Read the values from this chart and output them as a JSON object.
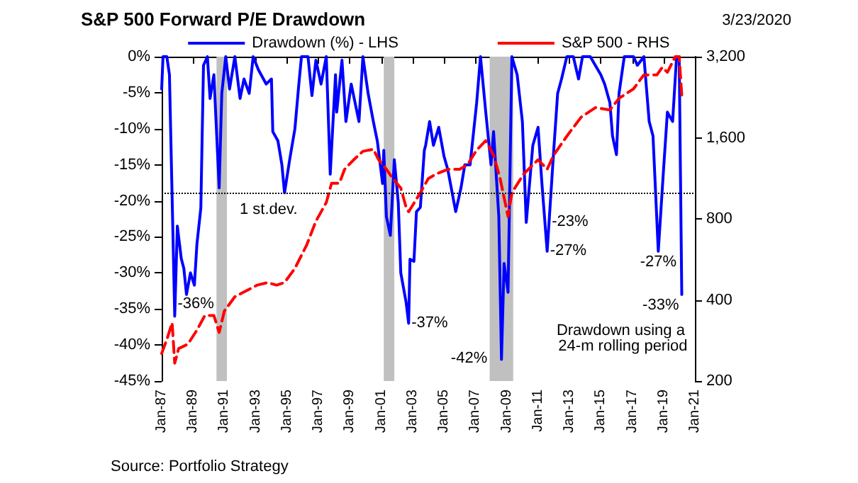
{
  "chart_data": {
    "type": "line",
    "title": "S&P 500 Forward P/E Drawdown",
    "subtitle": "3/23/2020",
    "xlim": [
      "1987-01",
      "2021-01"
    ],
    "xticks": [
      {
        "value": "1987-01",
        "label": "Jan-87"
      },
      {
        "value": "1989-01",
        "label": "Jan-89"
      },
      {
        "value": "1991-01",
        "label": "Jan-91"
      },
      {
        "value": "1993-01",
        "label": "Jan-93"
      },
      {
        "value": "1995-01",
        "label": "Jan-95"
      },
      {
        "value": "1997-01",
        "label": "Jan-97"
      },
      {
        "value": "1999-01",
        "label": "Jan-99"
      },
      {
        "value": "2001-01",
        "label": "Jan-01"
      },
      {
        "value": "2003-01",
        "label": "Jan-03"
      },
      {
        "value": "2005-01",
        "label": "Jan-05"
      },
      {
        "value": "2007-01",
        "label": "Jan-07"
      },
      {
        "value": "2009-01",
        "label": "Jan-09"
      },
      {
        "value": "2011-01",
        "label": "Jan-11"
      },
      {
        "value": "2013-01",
        "label": "Jan-13"
      },
      {
        "value": "2015-01",
        "label": "Jan-15"
      },
      {
        "value": "2017-01",
        "label": "Jan-17"
      },
      {
        "value": "2019-01",
        "label": "Jan-19"
      },
      {
        "value": "2021-01",
        "label": "Jan-21"
      }
    ],
    "ylim": [
      -45,
      0
    ],
    "yticks": [
      {
        "value": 0,
        "label": "0%"
      },
      {
        "value": -5,
        "label": "-5%"
      },
      {
        "value": -10,
        "label": "-10%"
      },
      {
        "value": -15,
        "label": "-15%"
      },
      {
        "value": -20,
        "label": "-20%"
      },
      {
        "value": -25,
        "label": "-25%"
      },
      {
        "value": -30,
        "label": "-30%"
      },
      {
        "value": -35,
        "label": "-35%"
      },
      {
        "value": -40,
        "label": "-40%"
      },
      {
        "value": -45,
        "label": "-45%"
      }
    ],
    "y2lim": [
      200,
      3200
    ],
    "y2ticks": [
      200,
      400,
      800,
      {
        "value": 1600,
        "label": "1,600"
      },
      {
        "value": 3200,
        "label": "3,200"
      }
    ],
    "log": "y2",
    "grid": false,
    "legend": "top",
    "marker": "none",
    "series": [
      {
        "name": "Drawdown (%) - LHS",
        "color": "#0000ff",
        "line_style": "solid",
        "x": [
          "1987-01",
          "1987-02",
          "1987-05",
          "1987-07",
          "1987-11",
          "1988-01",
          "1988-04",
          "1988-06",
          "1988-08",
          "1988-11",
          "1989-02",
          "1989-04",
          "1989-07",
          "1989-09",
          "1989-12",
          "1990-02",
          "1990-05",
          "1990-09",
          "1990-11",
          "1991-02",
          "1991-05",
          "1991-09",
          "1992-01",
          "1992-04",
          "1992-08",
          "1992-11",
          "1993-03",
          "1993-09",
          "1994-01",
          "1994-02",
          "1994-06",
          "1994-09",
          "1994-11",
          "1995-03",
          "1995-07",
          "1995-10",
          "1995-12",
          "1996-05",
          "1996-08",
          "1996-11",
          "1997-03",
          "1997-07",
          "1997-10",
          "1998-02",
          "1998-03",
          "1998-07",
          "1998-10",
          "1999-02",
          "1999-08",
          "1999-11",
          "2000-03",
          "2000-07",
          "2000-10",
          "2001-02",
          "2001-03",
          "2001-05",
          "2001-08",
          "2001-11",
          "2002-02",
          "2002-04",
          "2002-08",
          "2002-10",
          "2002-11",
          "2003-02",
          "2003-04",
          "2003-07",
          "2003-10",
          "2003-11",
          "2004-02",
          "2004-05",
          "2004-09",
          "2005-01",
          "2005-04",
          "2005-10",
          "2006-02",
          "2006-05",
          "2006-09",
          "2007-02",
          "2007-05",
          "2007-09",
          "2008-01",
          "2008-03",
          "2008-07",
          "2008-09",
          "2008-11",
          "2009-02",
          "2009-05",
          "2009-09",
          "2010-01",
          "2010-04",
          "2010-09",
          "2011-01",
          "2011-04",
          "2011-08",
          "2012-01",
          "2012-04",
          "2012-07",
          "2012-11",
          "2013-04",
          "2013-08",
          "2013-11",
          "2014-05",
          "2015-01",
          "2015-04",
          "2015-08",
          "2015-10",
          "2016-01",
          "2016-03",
          "2016-07",
          "2017-02",
          "2017-05",
          "2017-10",
          "2018-02",
          "2018-05",
          "2018-09",
          "2019-01",
          "2019-04",
          "2019-08",
          "2019-11",
          "2020-01",
          "2020-03"
        ],
        "values": [
          -4.5,
          0,
          0,
          -2.5,
          -36,
          -23.5,
          -28,
          -29.4,
          -33,
          -30,
          -31.7,
          -26,
          -21,
          -1.2,
          0,
          -5.8,
          -2.5,
          -18.2,
          -5.1,
          0,
          -4.5,
          0,
          -5.8,
          -3.1,
          -5.1,
          0,
          -1.8,
          -3.8,
          -3.1,
          -10.4,
          -11.7,
          -15,
          -18.9,
          -14.3,
          -10,
          -3.8,
          0,
          0,
          -5.4,
          -0.5,
          -3.8,
          0,
          -16.3,
          -2.5,
          -7.7,
          -0.5,
          -9,
          -3.8,
          -9,
          0,
          -5.1,
          -9,
          -11.7,
          -17.6,
          -13,
          -22.2,
          -24.8,
          -14.3,
          -20.2,
          -30,
          -34,
          -37,
          -28.1,
          -28.4,
          -21.5,
          -20.9,
          -13,
          -12.3,
          -9,
          -12.3,
          -9.8,
          -13.8,
          -15.7,
          -21.5,
          -18.2,
          -15,
          -15,
          -6.4,
          0,
          -7.7,
          -15,
          -10.4,
          -22.2,
          -42,
          -28.7,
          -32.7,
          0,
          -2.5,
          -9,
          -23,
          -12.3,
          -9.8,
          -17.6,
          -27,
          -13,
          -5.1,
          -3.1,
          0,
          0,
          -3.1,
          0,
          0,
          -2.5,
          -3.8,
          -6.4,
          -11,
          -13.6,
          -5.1,
          0,
          0,
          -1.2,
          0,
          -9,
          -11,
          -27,
          -15.7,
          -7.7,
          -9,
          0,
          0,
          -33
        ]
      },
      {
        "name": "S&P 500 - RHS",
        "color": "#ff0000",
        "line_style": "dashed",
        "axis": "y2",
        "x": [
          "1987-01",
          "1987-05",
          "1987-09",
          "1987-11",
          "1988-02",
          "1988-09",
          "1989-04",
          "1989-10",
          "1990-05",
          "1990-09",
          "1991-01",
          "1991-09",
          "1992-04",
          "1993-02",
          "1993-10",
          "1994-05",
          "1994-11",
          "1995-07",
          "1996-04",
          "1996-11",
          "1997-07",
          "1997-11",
          "1998-05",
          "1998-09",
          "1999-04",
          "1999-11",
          "2000-07",
          "2000-11",
          "2001-05",
          "2001-10",
          "2002-04",
          "2002-08",
          "2002-10",
          "2003-07",
          "2004-01",
          "2004-07",
          "2005-04",
          "2006-01",
          "2006-07",
          "2007-02",
          "2007-09",
          "2008-03",
          "2008-08",
          "2009-02",
          "2009-05",
          "2010-02",
          "2011-01",
          "2011-08",
          "2012-01",
          "2012-11",
          "2013-10",
          "2014-09",
          "2015-08",
          "2016-03",
          "2017-02",
          "2017-10",
          "2018-08",
          "2018-12",
          "2019-04",
          "2019-10",
          "2020-01",
          "2020-03"
        ],
        "values": [
          253,
          285,
          329,
          233,
          264,
          274,
          309,
          350,
          350,
          303,
          364,
          411,
          428,
          454,
          464,
          454,
          464,
          524,
          640,
          784,
          920,
          1085,
          1085,
          1222,
          1326,
          1425,
          1450,
          1326,
          1222,
          1128,
          1041,
          885,
          850,
          1000,
          1128,
          1174,
          1222,
          1222,
          1270,
          1440,
          1560,
          1380,
          1128,
          816,
          1000,
          1174,
          1326,
          1222,
          1380,
          1622,
          1908,
          2070,
          2030,
          2240,
          2430,
          2740,
          2740,
          2920,
          2800,
          3200,
          3200,
          2300
        ]
      }
    ],
    "ref_lines": [
      {
        "axis": "y",
        "value": -19,
        "label": "1 st.dev.",
        "color": "#000000",
        "line_style": "dotted"
      }
    ],
    "bands": [
      {
        "axis": "x",
        "from": "1990-07",
        "to": "1991-03",
        "color": "#c0c0c0"
      },
      {
        "axis": "x",
        "from": "2001-03",
        "to": "2001-11",
        "color": "#c0c0c0"
      },
      {
        "axis": "x",
        "from": "2007-12",
        "to": "2009-06",
        "color": "#c0c0c0"
      }
    ],
    "annotations": [
      {
        "text": "-36%",
        "x": "1987-11",
        "y": -36
      },
      {
        "text": "-37%",
        "x": "2002-10",
        "y": -37
      },
      {
        "text": "-42%",
        "x": "2008-09",
        "y": -42
      },
      {
        "text": "-23%",
        "x": "2010-04",
        "y": -23
      },
      {
        "text": "-27%",
        "x": "2011-08",
        "y": -27
      },
      {
        "text": "-27%",
        "x": "2018-09",
        "y": -27
      },
      {
        "text": "-33%",
        "x": "2020-03",
        "y": -33
      },
      "Drawdown using a 24-m rolling period",
      "Source: Portfolio Strategy"
    ]
  }
}
